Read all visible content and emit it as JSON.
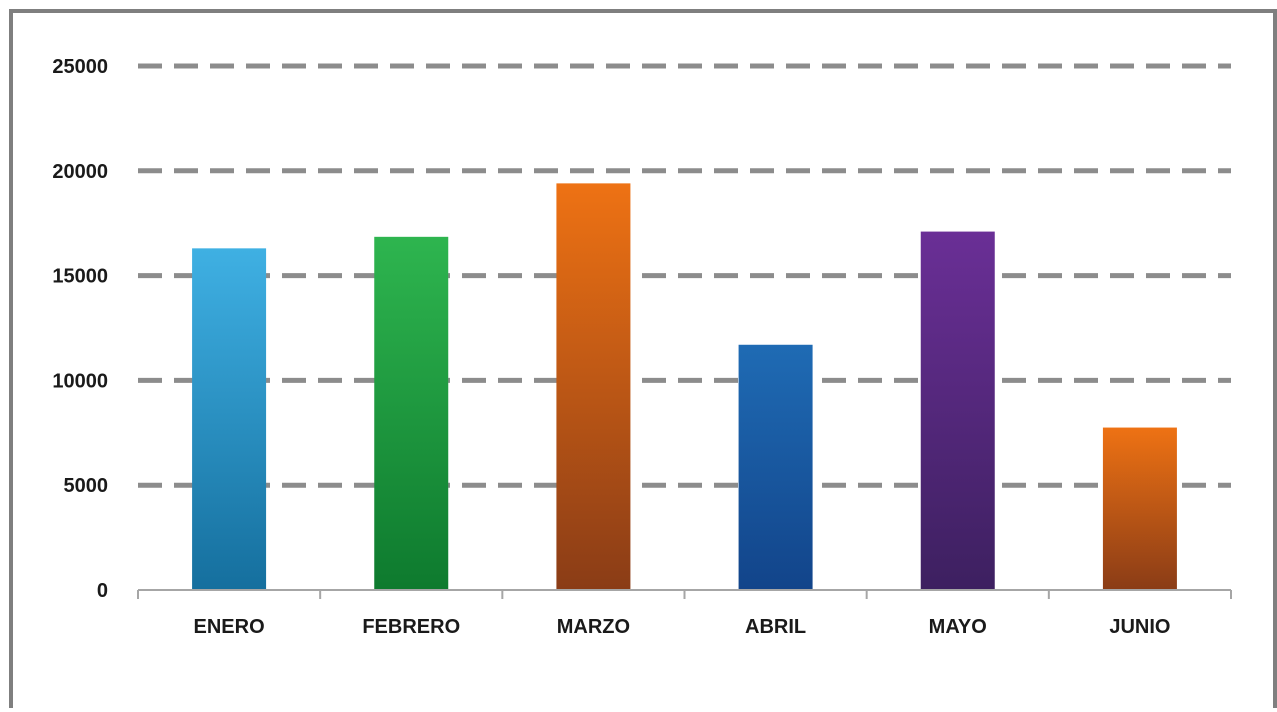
{
  "chart_data": {
    "type": "bar",
    "title": "",
    "xlabel": "",
    "ylabel": "",
    "categories": [
      "ENERO",
      "FEBRERO",
      "MARZO",
      "ABRIL",
      "MAYO",
      "JUNIO"
    ],
    "values": [
      16300,
      16850,
      19400,
      11700,
      17100,
      7750
    ],
    "ylim": [
      0,
      25000
    ],
    "yticks": [
      "0",
      "5000",
      "10000",
      "15000",
      "20000",
      "25000"
    ],
    "grid": "dashed horizontal",
    "legend": "none",
    "bar_colors": [
      [
        "#3fb0e3",
        "#156f9e"
      ],
      [
        "#2eb54f",
        "#0e7a2e"
      ],
      [
        "#ee7214",
        "#8a3c16"
      ],
      [
        "#1f6bb4",
        "#12448a"
      ],
      [
        "#6a2f96",
        "#3d2060"
      ],
      [
        "#ee7214",
        "#8a3c16"
      ]
    ],
    "gridline_color": "#8c8c8c",
    "axis_color": "#a6a6a6"
  }
}
